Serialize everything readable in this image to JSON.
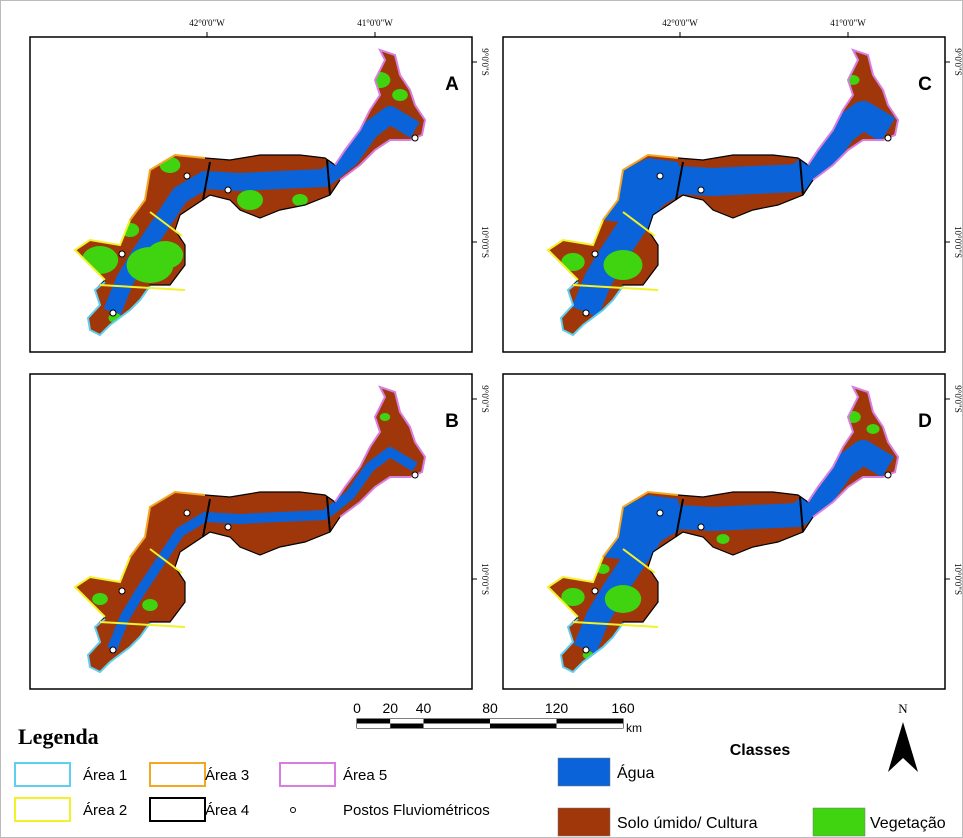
{
  "grid_labels": {
    "longitude": [
      "42°0'0\"W",
      "41°0'0\"W"
    ],
    "latitude": [
      "9°0'0\"S",
      "10°0'0\"S"
    ]
  },
  "panels": [
    {
      "label": "A"
    },
    {
      "label": "C"
    },
    {
      "label": "B"
    },
    {
      "label": "D"
    }
  ],
  "scale_bar": {
    "labels": [
      0,
      20,
      40,
      80,
      120,
      160
    ],
    "unit": "km"
  },
  "north": "N",
  "legend": {
    "title": "Legenda",
    "areas": [
      {
        "label": "Área 1",
        "color": "#5ecff0"
      },
      {
        "label": "Área 2",
        "color": "#f2f22a"
      },
      {
        "label": "Área 3",
        "color": "#f5a623"
      },
      {
        "label": "Área 4",
        "color": "#000000"
      },
      {
        "label": "Área 5",
        "color": "#d77ee0"
      }
    ],
    "stations": "Postos Fluviométricos"
  },
  "classes": {
    "title": "Classes",
    "items": [
      {
        "label": "Água",
        "color": "#0b63d9"
      },
      {
        "label": "Solo úmido/ Cultura",
        "color": "#a0370a"
      },
      {
        "label": "Vegetação",
        "color": "#3fd40f"
      }
    ]
  }
}
